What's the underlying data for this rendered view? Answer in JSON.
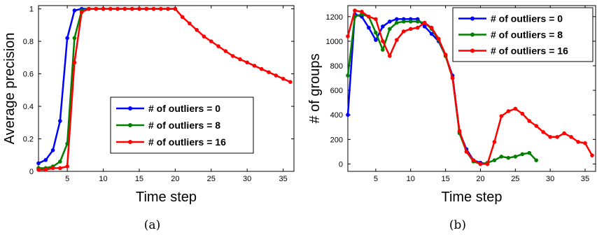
{
  "chart_data": [
    {
      "type": "line",
      "caption": "(a)",
      "xlabel": "Time step",
      "ylabel": "Average precision",
      "xlim": [
        1,
        36.5
      ],
      "ylim": [
        0,
        1.02
      ],
      "xticks": [
        5,
        10,
        15,
        20,
        25,
        30,
        35
      ],
      "yticks": [
        0,
        0.2,
        0.4,
        0.6,
        0.8,
        1
      ],
      "ytick_labels": [
        "0",
        "0.2",
        "0.4",
        "0.6",
        "0.8",
        "1"
      ],
      "legend_position": "center-right",
      "grid": false,
      "series": [
        {
          "name": "# of outliers = 0",
          "color": "#0000ff",
          "x": [
            1,
            2,
            3,
            4,
            5,
            6,
            7,
            8,
            9,
            10,
            11,
            12,
            13,
            14,
            15,
            16,
            17,
            18,
            19,
            20
          ],
          "y": [
            0.05,
            0.07,
            0.13,
            0.31,
            0.82,
            0.99,
            1.0,
            1.0,
            1.0,
            1.0,
            1.0,
            1.0,
            1.0,
            1.0,
            1.0,
            1.0,
            1.0,
            1.0,
            1.0,
            1.0
          ]
        },
        {
          "name": "# of outliers = 8",
          "color": "#008000",
          "x": [
            1,
            2,
            3,
            4,
            5,
            6,
            7,
            8,
            9,
            10,
            11,
            12,
            13,
            14,
            15,
            16,
            17,
            18,
            19,
            20
          ],
          "y": [
            0.02,
            0.02,
            0.03,
            0.06,
            0.17,
            0.82,
            0.99,
            1.0,
            1.0,
            1.0,
            1.0,
            1.0,
            1.0,
            1.0,
            1.0,
            1.0,
            1.0,
            1.0,
            1.0,
            1.0
          ]
        },
        {
          "name": "# of outliers = 16",
          "color": "#ff0000",
          "x": [
            1,
            2,
            3,
            4,
            5,
            6,
            7,
            8,
            9,
            10,
            11,
            12,
            13,
            14,
            15,
            16,
            17,
            18,
            19,
            20,
            21,
            22,
            23,
            24,
            25,
            26,
            27,
            28,
            29,
            30,
            31,
            32,
            33,
            34,
            35,
            36
          ],
          "y": [
            0.01,
            0.01,
            0.02,
            0.02,
            0.03,
            0.67,
            0.98,
            1.0,
            1.0,
            1.0,
            1.0,
            1.0,
            1.0,
            1.0,
            1.0,
            1.0,
            1.0,
            1.0,
            1.0,
            1.0,
            0.95,
            0.91,
            0.87,
            0.83,
            0.8,
            0.77,
            0.74,
            0.71,
            0.69,
            0.67,
            0.65,
            0.63,
            0.61,
            0.59,
            0.57,
            0.55
          ]
        }
      ]
    },
    {
      "type": "line",
      "caption": "(b)",
      "xlabel": "Time step",
      "ylabel": "# of groups",
      "xlim": [
        1,
        36.5
      ],
      "ylim": [
        -60,
        1290
      ],
      "xticks": [
        5,
        10,
        15,
        20,
        25,
        30,
        35
      ],
      "yticks": [
        0,
        200,
        400,
        600,
        800,
        1000,
        1200
      ],
      "ytick_labels": [
        "0",
        "200",
        "400",
        "600",
        "800",
        "1000",
        "1200"
      ],
      "legend_position": "top-right",
      "grid": false,
      "series": [
        {
          "name": "# of outliers = 0",
          "color": "#0000ff",
          "x": [
            1,
            2,
            3,
            4,
            5,
            6,
            7,
            8,
            9,
            10,
            11,
            12,
            13,
            14,
            15,
            16,
            17,
            18,
            19,
            20,
            21
          ],
          "y": [
            400,
            1220,
            1200,
            1110,
            1010,
            1120,
            1160,
            1180,
            1180,
            1180,
            1180,
            1120,
            1060,
            1000,
            880,
            720,
            260,
            120,
            30,
            10,
            0
          ]
        },
        {
          "name": "# of outliers = 8",
          "color": "#008000",
          "x": [
            1,
            2,
            3,
            4,
            5,
            6,
            7,
            8,
            9,
            10,
            11,
            12,
            13,
            14,
            15,
            16,
            17,
            18,
            19,
            20,
            21,
            22,
            23,
            24,
            25,
            26,
            27,
            28
          ],
          "y": [
            720,
            1200,
            1220,
            1200,
            1070,
            930,
            1100,
            1150,
            1160,
            1160,
            1160,
            1150,
            1100,
            1010,
            880,
            700,
            250,
            100,
            20,
            0,
            10,
            30,
            60,
            50,
            60,
            80,
            90,
            30
          ]
        },
        {
          "name": "# of outliers = 16",
          "color": "#ff0000",
          "x": [
            1,
            2,
            3,
            4,
            5,
            6,
            7,
            8,
            9,
            10,
            11,
            12,
            13,
            14,
            15,
            16,
            17,
            18,
            19,
            20,
            21,
            22,
            23,
            24,
            25,
            26,
            27,
            28,
            29,
            30,
            31,
            32,
            33,
            34,
            35,
            36
          ],
          "y": [
            1040,
            1250,
            1240,
            1200,
            1180,
            1000,
            880,
            1010,
            1080,
            1100,
            1110,
            1150,
            1110,
            1020,
            890,
            700,
            270,
            100,
            30,
            0,
            0,
            180,
            390,
            430,
            450,
            410,
            350,
            310,
            260,
            220,
            220,
            250,
            220,
            180,
            170,
            70
          ]
        }
      ]
    }
  ]
}
